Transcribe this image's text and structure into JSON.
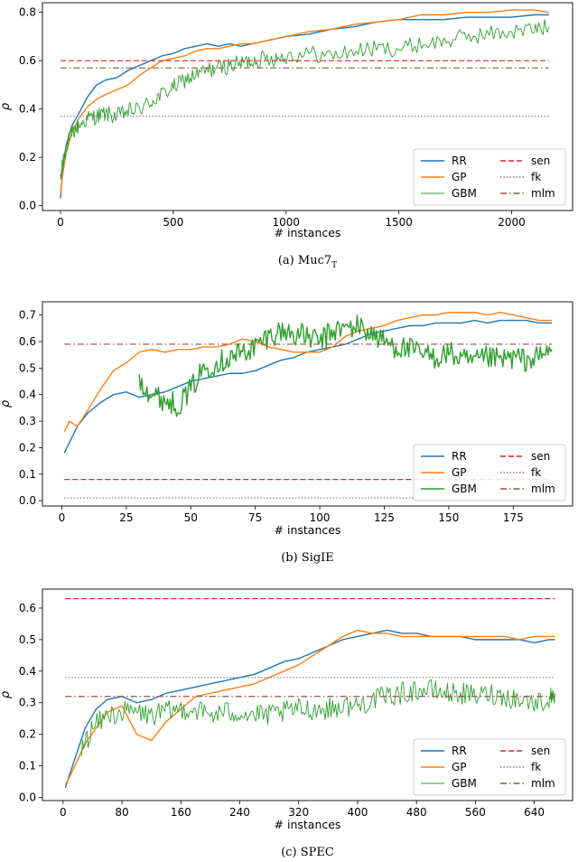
{
  "chart_data": [
    {
      "type": "line",
      "caption": "(a) Muc7",
      "caption_sub": "T",
      "xlabel": "# instances",
      "ylabel": "ρ",
      "xlim": [
        -80,
        2270
      ],
      "ylim": [
        -0.02,
        0.84
      ],
      "xticks": [
        0,
        500,
        1000,
        1500,
        2000
      ],
      "yticks": [
        0.0,
        0.2,
        0.4,
        0.6,
        0.8
      ],
      "ytick_labels": [
        "0.0",
        "0.2",
        "0.4",
        "0.6",
        "0.8"
      ],
      "series": [
        {
          "name": "RR",
          "style": "solid",
          "color": "#1f77b4",
          "width": 1.4,
          "x": [
            0,
            10,
            25,
            50,
            80,
            120,
            160,
            200,
            250,
            300,
            350,
            400,
            450,
            500,
            550,
            600,
            650,
            700,
            750,
            800,
            850,
            900,
            950,
            1000,
            1100,
            1200,
            1300,
            1400,
            1500,
            1600,
            1700,
            1800,
            1900,
            2000,
            2100,
            2165
          ],
          "y": [
            0.03,
            0.15,
            0.25,
            0.33,
            0.38,
            0.45,
            0.5,
            0.52,
            0.53,
            0.56,
            0.58,
            0.6,
            0.62,
            0.63,
            0.65,
            0.66,
            0.67,
            0.66,
            0.67,
            0.66,
            0.67,
            0.68,
            0.69,
            0.7,
            0.71,
            0.73,
            0.74,
            0.76,
            0.77,
            0.77,
            0.77,
            0.78,
            0.78,
            0.78,
            0.79,
            0.79
          ]
        },
        {
          "name": "GP",
          "style": "solid",
          "color": "#ff7f0e",
          "width": 1.4,
          "x": [
            0,
            10,
            25,
            50,
            80,
            120,
            160,
            200,
            250,
            300,
            350,
            400,
            450,
            500,
            550,
            600,
            650,
            700,
            750,
            800,
            850,
            900,
            950,
            1000,
            1100,
            1200,
            1300,
            1400,
            1500,
            1600,
            1700,
            1800,
            1900,
            2000,
            2100,
            2165
          ],
          "y": [
            0.05,
            0.13,
            0.22,
            0.3,
            0.36,
            0.41,
            0.44,
            0.46,
            0.48,
            0.5,
            0.54,
            0.57,
            0.6,
            0.61,
            0.62,
            0.64,
            0.65,
            0.65,
            0.66,
            0.67,
            0.67,
            0.68,
            0.69,
            0.7,
            0.72,
            0.73,
            0.75,
            0.76,
            0.77,
            0.79,
            0.79,
            0.8,
            0.8,
            0.81,
            0.81,
            0.8
          ]
        },
        {
          "name": "GBM",
          "style": "noisy",
          "color": "#2ca02c",
          "width": 0.9,
          "x": [
            0,
            10,
            25,
            50,
            80,
            120,
            160,
            200,
            250,
            300,
            350,
            400,
            450,
            500,
            550,
            600,
            650,
            700,
            750,
            800,
            850,
            900,
            950,
            1000,
            1100,
            1200,
            1300,
            1400,
            1500,
            1600,
            1700,
            1800,
            1900,
            2000,
            2100,
            2165
          ],
          "y": [
            0.1,
            0.18,
            0.24,
            0.3,
            0.33,
            0.36,
            0.37,
            0.38,
            0.37,
            0.39,
            0.4,
            0.43,
            0.46,
            0.49,
            0.52,
            0.54,
            0.56,
            0.57,
            0.58,
            0.59,
            0.6,
            0.61,
            0.61,
            0.62,
            0.63,
            0.62,
            0.64,
            0.65,
            0.65,
            0.67,
            0.68,
            0.7,
            0.71,
            0.72,
            0.73,
            0.74
          ]
        },
        {
          "name": "sen",
          "style": "dashed",
          "color": "#d62728",
          "width": 1.2,
          "x": [
            0,
            2165
          ],
          "y": [
            0.6,
            0.6
          ]
        },
        {
          "name": "fk",
          "style": "dotted",
          "color": "#9467bd",
          "width": 1.2,
          "x": [
            0,
            2165
          ],
          "y": [
            0.37,
            0.37
          ]
        },
        {
          "name": "mlm",
          "style": "dashdot",
          "color": "#8c564b",
          "width": 1.2,
          "x": [
            0,
            2165
          ],
          "y": [
            0.57,
            0.57
          ]
        }
      ],
      "legend_loc": "lower right"
    },
    {
      "type": "line",
      "caption": "(b) SigIE",
      "caption_sub": "",
      "xlabel": "# instances",
      "ylabel": "ρ",
      "xlim": [
        -7.5,
        198
      ],
      "ylim": [
        -0.02,
        0.75
      ],
      "xticks": [
        0,
        25,
        50,
        75,
        100,
        125,
        150,
        175
      ],
      "yticks": [
        0.0,
        0.1,
        0.2,
        0.3,
        0.4,
        0.5,
        0.6,
        0.7
      ],
      "ytick_labels": [
        "0.0",
        "0.1",
        "0.2",
        "0.3",
        "0.4",
        "0.5",
        "0.6",
        "0.7"
      ],
      "series": [
        {
          "name": "RR",
          "style": "solid",
          "color": "#1f77b4",
          "width": 1.4,
          "x": [
            1,
            3,
            6,
            10,
            15,
            20,
            25,
            30,
            35,
            40,
            45,
            50,
            55,
            60,
            65,
            70,
            75,
            80,
            85,
            90,
            95,
            100,
            105,
            110,
            115,
            120,
            125,
            130,
            135,
            140,
            145,
            150,
            155,
            160,
            165,
            170,
            175,
            180,
            185,
            190
          ],
          "y": [
            0.18,
            0.22,
            0.28,
            0.33,
            0.37,
            0.4,
            0.41,
            0.39,
            0.4,
            0.41,
            0.43,
            0.45,
            0.46,
            0.47,
            0.48,
            0.48,
            0.49,
            0.51,
            0.53,
            0.54,
            0.56,
            0.57,
            0.58,
            0.59,
            0.61,
            0.63,
            0.64,
            0.65,
            0.66,
            0.66,
            0.67,
            0.67,
            0.67,
            0.68,
            0.67,
            0.68,
            0.68,
            0.68,
            0.67,
            0.67
          ]
        },
        {
          "name": "GP",
          "style": "solid",
          "color": "#ff7f0e",
          "width": 1.4,
          "x": [
            1,
            3,
            6,
            10,
            15,
            20,
            25,
            30,
            35,
            40,
            45,
            50,
            55,
            60,
            65,
            70,
            75,
            80,
            85,
            90,
            95,
            100,
            105,
            110,
            115,
            120,
            125,
            130,
            135,
            140,
            145,
            150,
            155,
            160,
            165,
            170,
            175,
            180,
            185,
            190
          ],
          "y": [
            0.26,
            0.3,
            0.28,
            0.34,
            0.42,
            0.49,
            0.52,
            0.56,
            0.57,
            0.56,
            0.57,
            0.57,
            0.58,
            0.58,
            0.59,
            0.61,
            0.6,
            0.58,
            0.57,
            0.56,
            0.56,
            0.56,
            0.58,
            0.62,
            0.64,
            0.65,
            0.66,
            0.68,
            0.69,
            0.7,
            0.7,
            0.71,
            0.71,
            0.71,
            0.7,
            0.71,
            0.7,
            0.69,
            0.68,
            0.68
          ]
        },
        {
          "name": "GBM",
          "style": "noisy",
          "color": "#2ca02c",
          "width": 1.4,
          "x": [
            30,
            35,
            40,
            45,
            50,
            55,
            60,
            65,
            70,
            75,
            80,
            85,
            90,
            95,
            100,
            105,
            110,
            115,
            120,
            125,
            130,
            135,
            140,
            145,
            150,
            155,
            160,
            165,
            170,
            175,
            180,
            185,
            190
          ],
          "y": [
            0.46,
            0.4,
            0.38,
            0.36,
            0.42,
            0.5,
            0.52,
            0.54,
            0.56,
            0.58,
            0.62,
            0.64,
            0.63,
            0.62,
            0.6,
            0.64,
            0.65,
            0.66,
            0.63,
            0.6,
            0.58,
            0.57,
            0.55,
            0.54,
            0.56,
            0.53,
            0.52,
            0.54,
            0.53,
            0.54,
            0.53,
            0.54,
            0.57
          ]
        },
        {
          "name": "sen",
          "style": "dashed",
          "color": "#d62728",
          "width": 1.2,
          "x": [
            1,
            190
          ],
          "y": [
            0.08,
            0.08
          ]
        },
        {
          "name": "fk",
          "style": "dotted",
          "color": "#9467bd",
          "width": 1.2,
          "x": [
            1,
            190
          ],
          "y": [
            0.01,
            0.01
          ]
        },
        {
          "name": "mlm",
          "style": "dashdot",
          "color": "#8c564b",
          "width": 1.2,
          "x": [
            1,
            190
          ],
          "y": [
            0.59,
            0.59
          ]
        }
      ],
      "legend_loc": "lower right"
    },
    {
      "type": "line",
      "caption": "(c) SPEC",
      "caption_sub": "",
      "xlabel": "# instances",
      "ylabel": "ρ",
      "xlim": [
        -28,
        692
      ],
      "ylim": [
        -0.01,
        0.66
      ],
      "xticks": [
        0,
        80,
        160,
        240,
        320,
        400,
        480,
        560,
        640
      ],
      "yticks": [
        0.0,
        0.1,
        0.2,
        0.3,
        0.4,
        0.5,
        0.6
      ],
      "ytick_labels": [
        "0.0",
        "0.1",
        "0.2",
        "0.3",
        "0.4",
        "0.5",
        "0.6"
      ],
      "series": [
        {
          "name": "RR",
          "style": "solid",
          "color": "#1f77b4",
          "width": 1.4,
          "x": [
            3,
            10,
            20,
            30,
            45,
            60,
            80,
            100,
            120,
            140,
            160,
            180,
            200,
            220,
            240,
            260,
            280,
            300,
            320,
            340,
            360,
            380,
            400,
            420,
            440,
            460,
            480,
            500,
            520,
            540,
            560,
            580,
            600,
            620,
            640,
            660,
            668
          ],
          "y": [
            0.03,
            0.08,
            0.15,
            0.22,
            0.28,
            0.31,
            0.32,
            0.3,
            0.31,
            0.33,
            0.34,
            0.35,
            0.36,
            0.37,
            0.38,
            0.39,
            0.41,
            0.43,
            0.44,
            0.46,
            0.48,
            0.5,
            0.51,
            0.52,
            0.53,
            0.52,
            0.52,
            0.51,
            0.51,
            0.51,
            0.5,
            0.5,
            0.5,
            0.5,
            0.49,
            0.5,
            0.5
          ]
        },
        {
          "name": "GP",
          "style": "solid",
          "color": "#ff7f0e",
          "width": 1.4,
          "x": [
            3,
            10,
            20,
            30,
            45,
            60,
            80,
            100,
            120,
            140,
            160,
            180,
            200,
            220,
            240,
            260,
            280,
            300,
            320,
            340,
            360,
            380,
            400,
            420,
            440,
            460,
            480,
            500,
            520,
            540,
            560,
            580,
            600,
            620,
            640,
            660,
            668
          ],
          "y": [
            0.04,
            0.07,
            0.12,
            0.17,
            0.22,
            0.27,
            0.29,
            0.2,
            0.18,
            0.24,
            0.28,
            0.32,
            0.33,
            0.34,
            0.35,
            0.36,
            0.38,
            0.4,
            0.42,
            0.45,
            0.48,
            0.51,
            0.53,
            0.52,
            0.52,
            0.51,
            0.51,
            0.51,
            0.51,
            0.51,
            0.51,
            0.51,
            0.51,
            0.5,
            0.51,
            0.51,
            0.51
          ]
        },
        {
          "name": "GBM",
          "style": "noisy",
          "color": "#2ca02c",
          "width": 0.9,
          "x": [
            25,
            40,
            60,
            80,
            100,
            120,
            140,
            160,
            180,
            200,
            220,
            240,
            260,
            280,
            300,
            320,
            340,
            360,
            380,
            400,
            420,
            440,
            460,
            480,
            500,
            520,
            540,
            560,
            580,
            600,
            620,
            640,
            660,
            668
          ],
          "y": [
            0.15,
            0.22,
            0.26,
            0.27,
            0.27,
            0.26,
            0.27,
            0.28,
            0.28,
            0.26,
            0.27,
            0.27,
            0.26,
            0.26,
            0.27,
            0.28,
            0.28,
            0.28,
            0.29,
            0.29,
            0.31,
            0.32,
            0.33,
            0.34,
            0.34,
            0.33,
            0.33,
            0.32,
            0.33,
            0.32,
            0.31,
            0.3,
            0.31,
            0.33
          ]
        },
        {
          "name": "sen",
          "style": "dashed",
          "color": "#d62728",
          "width": 1.2,
          "x": [
            3,
            668
          ],
          "y": [
            0.63,
            0.63
          ]
        },
        {
          "name": "fk",
          "style": "dotted",
          "color": "#9467bd",
          "width": 1.2,
          "x": [
            3,
            668
          ],
          "y": [
            0.38,
            0.38
          ]
        },
        {
          "name": "mlm",
          "style": "dashdot",
          "color": "#8c564b",
          "width": 1.2,
          "x": [
            3,
            668
          ],
          "y": [
            0.32,
            0.32
          ]
        }
      ],
      "legend_loc": "lower right"
    }
  ]
}
